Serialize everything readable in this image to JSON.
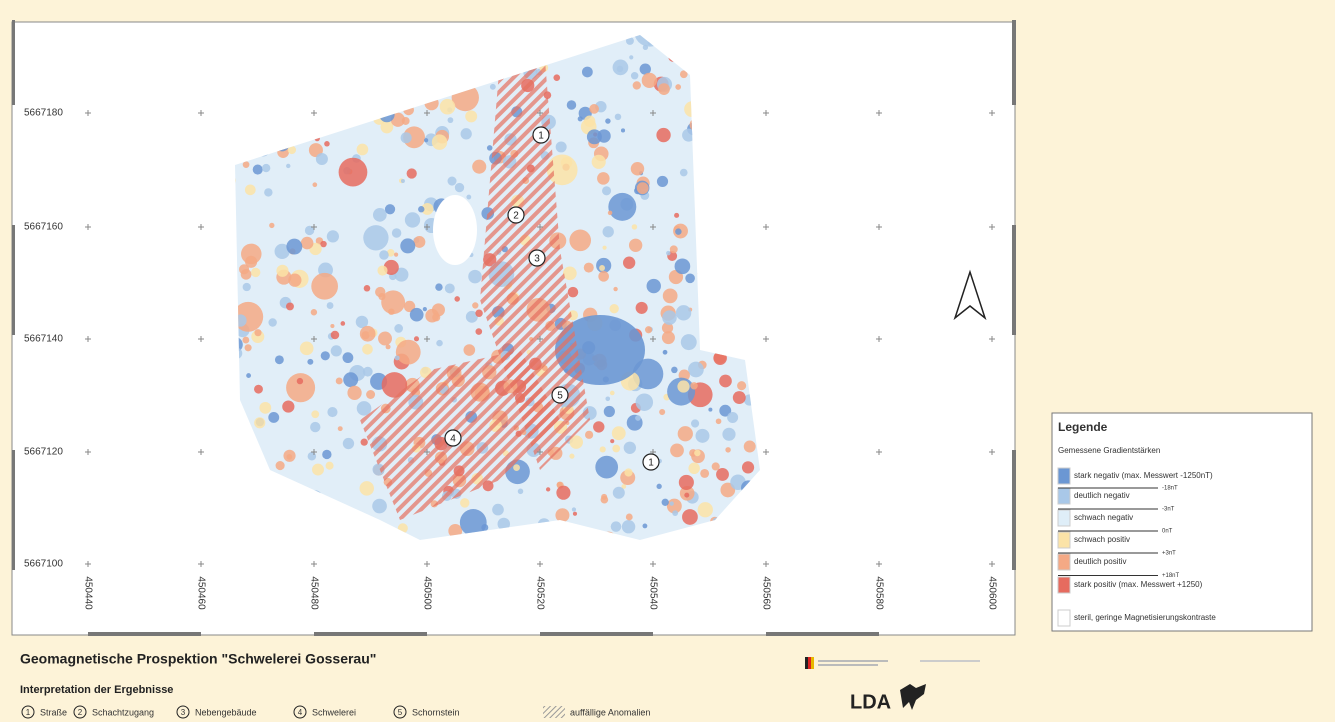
{
  "map": {
    "y_labels": [
      "5667180",
      "5667160",
      "5667140",
      "5667120",
      "5667100"
    ],
    "x_labels": [
      "450440",
      "450460",
      "450480",
      "450500",
      "450520",
      "450540",
      "450560",
      "450580",
      "450600"
    ],
    "markers": [
      "1",
      "2",
      "3",
      "5",
      "4",
      "1"
    ]
  },
  "legend": {
    "title": "Legende",
    "subtitle": "Gemessene Gradientstärken",
    "entries": [
      "stark negativ (max. Messwert -1250nT)",
      "deutlich negativ",
      "schwach negativ",
      "schwach positiv",
      "deutlich positiv",
      "stark positiv (max. Messwert +1250)",
      "steril, geringe Magnetisierungskontraste"
    ],
    "thresholds": [
      "-18nT",
      "-3nT",
      "0nT",
      "+3nT",
      "+18nT"
    ]
  },
  "footer": {
    "title": "Geomagnetische Prospektion \"Schwelerei Gosserau\"",
    "subtitle": "Interpretation der Ergebnisse",
    "key": [
      {
        "number": "1",
        "label": "Straße"
      },
      {
        "number": "2",
        "label": "Schachtzugang"
      },
      {
        "number": "3",
        "label": "Nebengebäude"
      },
      {
        "number": "4",
        "label": "Schwelerei"
      },
      {
        "number": "5",
        "label": "Schornstein"
      }
    ],
    "hatch_label": "auffällige Anomalien",
    "logo": "LDA"
  }
}
